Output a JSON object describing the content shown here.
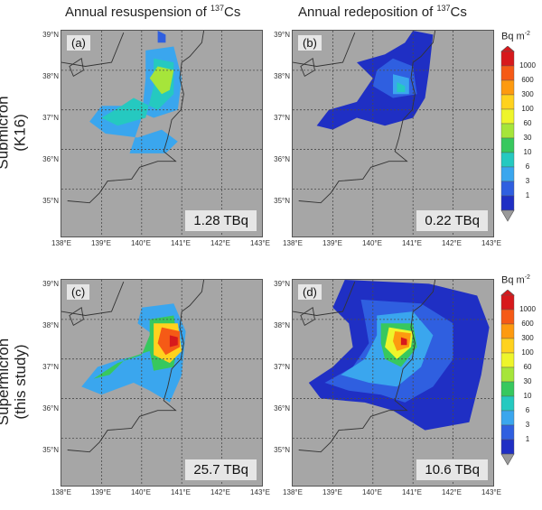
{
  "column_titles": [
    {
      "prefix": "Annual resuspension of ",
      "sup": "137",
      "suffix": "Cs"
    },
    {
      "prefix": "Annual redeposition of ",
      "sup": "137",
      "suffix": "Cs"
    }
  ],
  "row_titles": [
    {
      "line1": "Submicron",
      "line2": "(K16)"
    },
    {
      "line1": "Supermicron",
      "line2": "(this study)"
    }
  ],
  "panels": [
    {
      "label": "(a)",
      "total": "1.28 TBq"
    },
    {
      "label": "(b)",
      "total": "0.22 TBq"
    },
    {
      "label": "(c)",
      "total": "25.7 TBq"
    },
    {
      "label": "(d)",
      "total": "10.6 TBq"
    }
  ],
  "lat_labels": [
    "39°N",
    "38°N",
    "37°N",
    "36°N",
    "35°N"
  ],
  "lon_labels": [
    "138°E",
    "139°E",
    "140°E",
    "141°E",
    "142°E",
    "143°E"
  ],
  "colorbar": {
    "title_prefix": "Bq m",
    "title_sup": "-2",
    "ticks": [
      "1000",
      "600",
      "300",
      "100",
      "60",
      "30",
      "10",
      "6",
      "3",
      "1"
    ],
    "colors": [
      "#d7191c",
      "#f55a16",
      "#fd9a0f",
      "#ffd21e",
      "#eef52b",
      "#a6e53a",
      "#37c85e",
      "#25c9c0",
      "#3aa6ee",
      "#2f5fe0",
      "#1f2fc4"
    ],
    "below_color": "#9a9a9a"
  },
  "colors": {
    "land_background": "#a6a6a6",
    "grid": "#4a4a4a",
    "coast": "#333333"
  }
}
